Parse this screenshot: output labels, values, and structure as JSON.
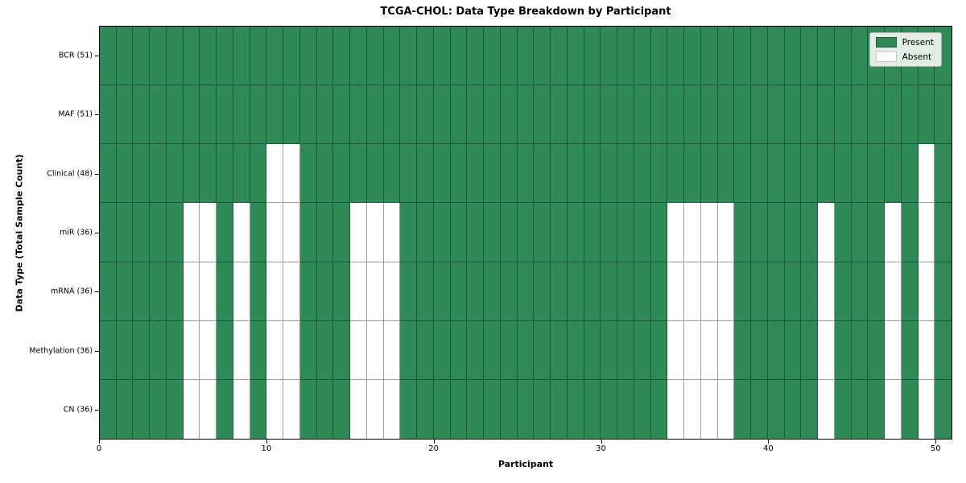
{
  "chart_data": {
    "type": "heatmap",
    "title": "TCGA-CHOL: Data Type Breakdown by Participant",
    "xlabel": "Participant",
    "ylabel": "Data Type (Total Sample Count)",
    "n_participants": 51,
    "x_range": [
      0,
      51
    ],
    "x_ticks": [
      0,
      10,
      20,
      30,
      40,
      50
    ],
    "grid": true,
    "legend_position": "upper right",
    "rows": [
      {
        "label": "BCR (51)",
        "data_type": "BCR",
        "present_count": 51,
        "absent_participants": []
      },
      {
        "label": "MAF (51)",
        "data_type": "MAF",
        "present_count": 51,
        "absent_participants": []
      },
      {
        "label": "Clinical (48)",
        "data_type": "Clinical",
        "present_count": 48,
        "absent_participants": [
          10,
          11,
          49
        ]
      },
      {
        "label": "miR (36)",
        "data_type": "miR",
        "present_count": 36,
        "absent_participants": [
          5,
          6,
          8,
          10,
          11,
          15,
          16,
          17,
          34,
          35,
          36,
          37,
          43,
          47,
          49
        ]
      },
      {
        "label": "mRNA (36)",
        "data_type": "mRNA",
        "present_count": 36,
        "absent_participants": [
          5,
          6,
          8,
          10,
          11,
          15,
          16,
          17,
          34,
          35,
          36,
          37,
          43,
          47,
          49
        ]
      },
      {
        "label": "Methylation (36)",
        "data_type": "Methylation",
        "present_count": 36,
        "absent_participants": [
          5,
          6,
          8,
          10,
          11,
          15,
          16,
          17,
          34,
          35,
          36,
          37,
          43,
          47,
          49
        ]
      },
      {
        "label": "CN (36)",
        "data_type": "CN",
        "present_count": 36,
        "absent_participants": [
          5,
          6,
          8,
          10,
          11,
          15,
          16,
          17,
          34,
          35,
          36,
          37,
          43,
          47,
          49
        ]
      }
    ],
    "legend": [
      {
        "label": "Present",
        "color": "#2e8b57"
      },
      {
        "label": "Absent",
        "color": "#ffffff"
      }
    ],
    "colors": {
      "present": "#2e8b57",
      "absent": "#ffffff",
      "grid_line": "rgba(0,0,0,0.38)",
      "spine": "#000000"
    }
  }
}
